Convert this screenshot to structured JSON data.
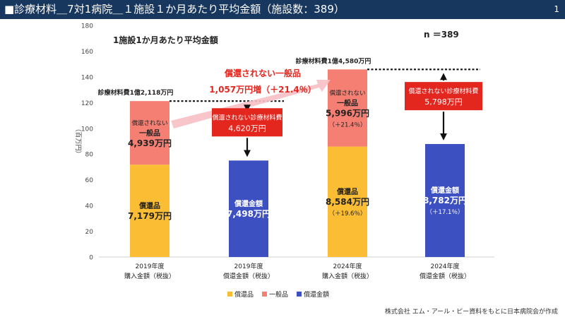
{
  "header": {
    "title": "■診療材料＿7対1病院＿１施設１か月あたり平均金額（施設数：389）",
    "page_number": "1"
  },
  "subtitle": "1施設1か月あたり平均金額",
  "n_label": "n ＝389",
  "footer": "株式会社 エム・アール・ピー資料をもとに日本病院会が作成",
  "colors": {
    "reimbursed": "#fbbd33",
    "general": "#f57f73",
    "reimbursed_amount": "#3d50c1",
    "callout": "#e3271f",
    "arrow": "#f7c0c4"
  },
  "chart_data": {
    "type": "bar",
    "stacked": true,
    "ylabel": "（百万円）",
    "ylim": [
      0,
      180
    ],
    "yticks": [
      0,
      20,
      40,
      60,
      80,
      100,
      120,
      140,
      160,
      180
    ],
    "grid": false,
    "legend_position": "bottom",
    "categories": [
      [
        "2019年度",
        "購入金額（税抜）"
      ],
      [
        "2019年度",
        "償還金額（税抜）"
      ],
      [
        "2024年度",
        "購入金額（税抜）"
      ],
      [
        "2024年度",
        "償還金額（税抜）"
      ]
    ],
    "series": [
      {
        "name": "償還品",
        "color_key": "reimbursed",
        "values": [
          71.79,
          0,
          85.84,
          0
        ]
      },
      {
        "name": "一般品",
        "color_key": "general",
        "values": [
          49.39,
          0,
          59.96,
          0
        ]
      },
      {
        "name": "償還金額",
        "color_key": "reimbursed_amount",
        "values": [
          0,
          74.98,
          0,
          87.82
        ]
      }
    ],
    "bar_labels": [
      {
        "bar": 0,
        "segment": 0,
        "lines": [
          "償還品",
          "7,179万円"
        ],
        "color": "#222222"
      },
      {
        "bar": 0,
        "segment": 1,
        "lines": [
          "償還されない",
          "一般品",
          "4,939万円"
        ],
        "color": "#222222"
      },
      {
        "bar": 1,
        "segment": 2,
        "lines": [
          "償還金額",
          "7,498万円"
        ],
        "color": "#ffffff"
      },
      {
        "bar": 2,
        "segment": 0,
        "lines": [
          "償還品",
          "8,584万円",
          "（＋19.6％）"
        ],
        "color": "#222222"
      },
      {
        "bar": 2,
        "segment": 1,
        "lines": [
          "償還されない",
          "一般品",
          "5,996万円",
          "（＋21.4％）"
        ],
        "color": "#222222"
      },
      {
        "bar": 3,
        "segment": 2,
        "lines": [
          "償還金額",
          "8,782万円",
          "（＋17.1％）"
        ],
        "color": "#ffffff"
      }
    ],
    "total_labels": [
      {
        "bar": 0,
        "total": 121.18,
        "text": "診療材料費1億2,118万円"
      },
      {
        "bar": 2,
        "total": 145.8,
        "text": "診療材料費1億4,580万円"
      }
    ],
    "gap_callouts": [
      {
        "between": [
          0,
          1
        ],
        "lines": [
          "償還されない診療材料費",
          "4,620万円"
        ]
      },
      {
        "between": [
          2,
          3
        ],
        "lines": [
          "償還されない診療材料費",
          "5,798万円"
        ]
      }
    ],
    "growth_annotation": {
      "lines": [
        "償還されない一般品",
        "1,057万円増（＋21.4％）"
      ]
    }
  }
}
